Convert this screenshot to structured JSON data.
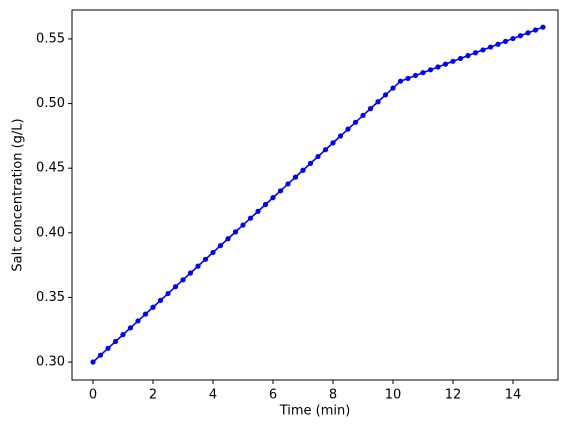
{
  "chart_data": {
    "type": "line",
    "xlabel": "Time (min)",
    "ylabel": "Salt concentration (g/L)",
    "x": [
      0,
      0.25,
      0.5,
      0.75,
      1,
      1.25,
      1.5,
      1.75,
      2,
      2.25,
      2.5,
      2.75,
      3,
      3.25,
      3.5,
      3.75,
      4,
      4.25,
      4.5,
      4.75,
      5,
      5.25,
      5.5,
      5.75,
      6,
      6.25,
      6.5,
      6.75,
      7,
      7.25,
      7.5,
      7.75,
      8,
      8.25,
      8.5,
      8.75,
      9,
      9.25,
      9.5,
      9.75,
      10,
      10.25,
      10.5,
      10.75,
      11,
      11.25,
      11.5,
      11.75,
      12,
      12.25,
      12.5,
      12.75,
      13,
      13.25,
      13.5,
      13.75,
      14,
      14.25,
      14.5,
      14.75,
      15
    ],
    "series": [
      {
        "color": "#0000ff",
        "values": [
          0.3,
          0.3053,
          0.3106,
          0.3159,
          0.3212,
          0.3265,
          0.3318,
          0.3371,
          0.3424,
          0.3477,
          0.353,
          0.3583,
          0.3636,
          0.3689,
          0.3742,
          0.3795,
          0.3848,
          0.3901,
          0.3954,
          0.4007,
          0.406,
          0.4113,
          0.4166,
          0.4219,
          0.4272,
          0.4325,
          0.4378,
          0.4431,
          0.4484,
          0.4537,
          0.459,
          0.4643,
          0.4696,
          0.4749,
          0.4802,
          0.4855,
          0.4908,
          0.4961,
          0.5014,
          0.5067,
          0.512,
          0.5173,
          0.5195,
          0.5217,
          0.5239,
          0.5261,
          0.5283,
          0.5305,
          0.5327,
          0.5349,
          0.5371,
          0.5393,
          0.5415,
          0.5437,
          0.5459,
          0.5481,
          0.5503,
          0.5525,
          0.5547,
          0.5569,
          0.5591
        ]
      }
    ],
    "xlim": [
      -0.7,
      15.5
    ],
    "ylim": [
      0.2861,
      0.5724
    ],
    "xticks": [
      0,
      2,
      4,
      6,
      8,
      10,
      12,
      14
    ],
    "yticks": [
      {
        "value": 0.3,
        "label": "0.30"
      },
      {
        "value": 0.35,
        "label": "0.35"
      },
      {
        "value": 0.4,
        "label": "0.40"
      },
      {
        "value": 0.45,
        "label": "0.45"
      },
      {
        "value": 0.5,
        "label": "0.50"
      },
      {
        "value": 0.55,
        "label": "0.55"
      }
    ],
    "grid": false
  }
}
